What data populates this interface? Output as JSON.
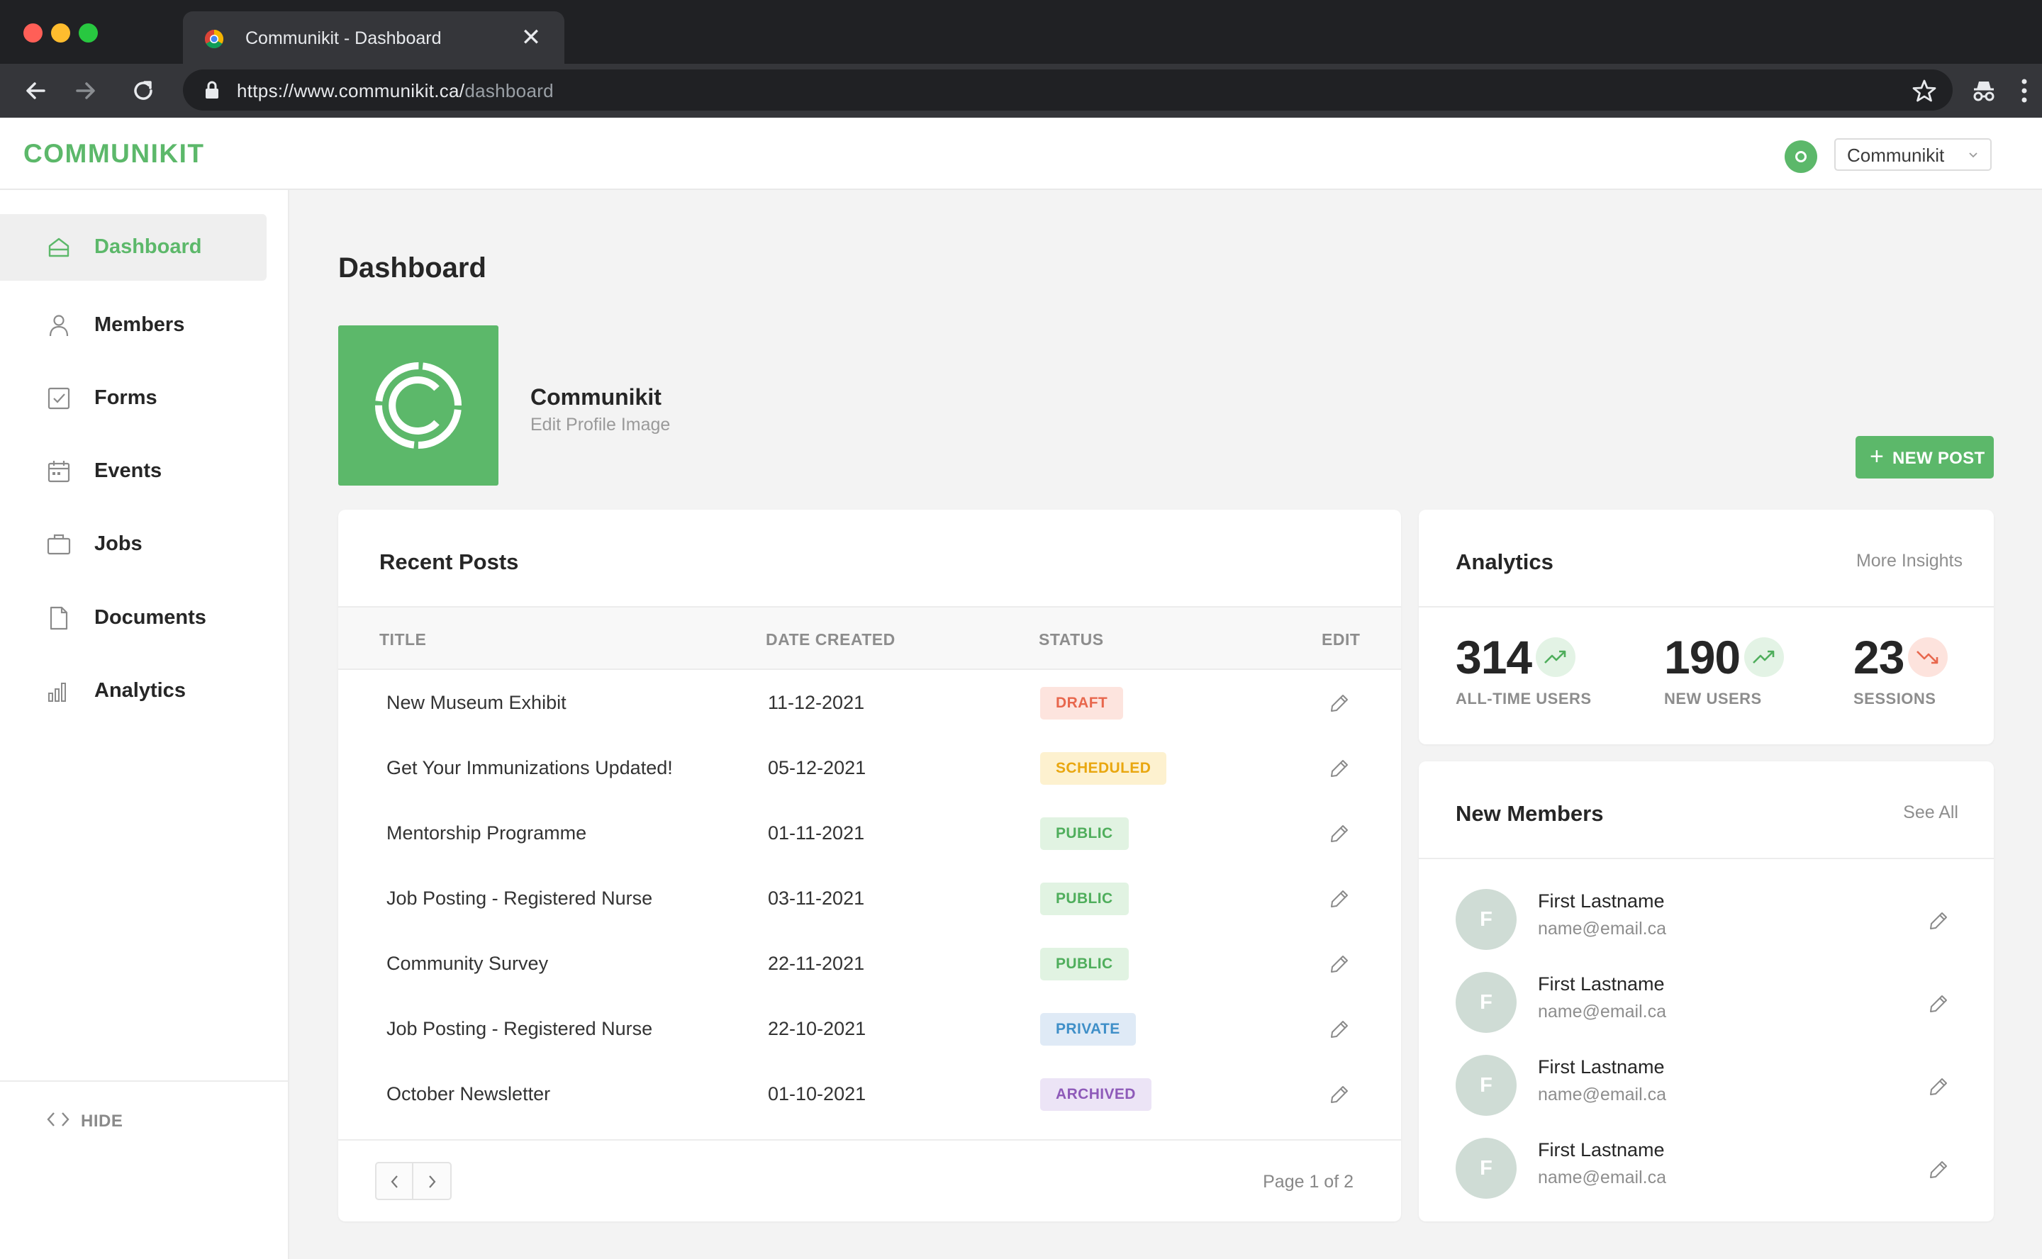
{
  "browser": {
    "tab_title": "Communikit - Dashboard",
    "url_host": "https://www.communikit.ca/",
    "url_path": "dashboard"
  },
  "header": {
    "logo": "COMMUNIKIT",
    "account": "Communikit"
  },
  "sidebar": {
    "items": [
      {
        "label": "Dashboard",
        "icon": "home-icon",
        "active": true
      },
      {
        "label": "Members",
        "icon": "user-icon"
      },
      {
        "label": "Forms",
        "icon": "checkbox-icon"
      },
      {
        "label": "Events",
        "icon": "calendar-icon"
      },
      {
        "label": "Jobs",
        "icon": "briefcase-icon"
      },
      {
        "label": "Documents",
        "icon": "document-icon"
      },
      {
        "label": "Analytics",
        "icon": "bar-chart-icon"
      }
    ],
    "hide_label": "HIDE"
  },
  "page": {
    "title": "Dashboard",
    "profile_name": "Communikit",
    "profile_edit": "Edit Profile Image",
    "new_post_label": "NEW POST"
  },
  "posts": {
    "title": "Recent Posts",
    "columns": [
      "TITLE",
      "DATE CREATED",
      "STATUS",
      "EDIT"
    ],
    "rows": [
      {
        "title": "New Museum Exhibit",
        "date": "11-12-2021",
        "status": "DRAFT"
      },
      {
        "title": "Get Your Immunizations Updated!",
        "date": "05-12-2021",
        "status": "SCHEDULED"
      },
      {
        "title": "Mentorship Programme",
        "date": "01-11-2021",
        "status": "PUBLIC"
      },
      {
        "title": "Job Posting - Registered Nurse",
        "date": "03-11-2021",
        "status": "PUBLIC"
      },
      {
        "title": "Community Survey",
        "date": "22-11-2021",
        "status": "PUBLIC"
      },
      {
        "title": "Job Posting - Registered Nurse",
        "date": "22-10-2021",
        "status": "PRIVATE"
      },
      {
        "title": "October Newsletter",
        "date": "01-10-2021",
        "status": "ARCHIVED"
      }
    ],
    "page_info": "Page 1 of 2"
  },
  "status_colors": {
    "DRAFT": {
      "bg": "#fde4de",
      "fg": "#e8674d"
    },
    "SCHEDULED": {
      "bg": "#fdf1cf",
      "fg": "#e9a70f"
    },
    "PUBLIC": {
      "bg": "#e1f3e2",
      "fg": "#4fae5c"
    },
    "PRIVATE": {
      "bg": "#dfeaf6",
      "fg": "#3f8fc8"
    },
    "ARCHIVED": {
      "bg": "#ece4f6",
      "fg": "#8e5ab9"
    }
  },
  "analytics": {
    "title": "Analytics",
    "link": "More Insights",
    "stats": [
      {
        "value": "314",
        "label": "ALL-TIME USERS",
        "trend": "up"
      },
      {
        "value": "190",
        "label": "NEW USERS",
        "trend": "up"
      },
      {
        "value": "23",
        "label": "SESSIONS",
        "trend": "down"
      }
    ]
  },
  "members": {
    "title": "New Members",
    "link": "See All",
    "items": [
      {
        "initial": "F",
        "name": "First Lastname",
        "email": "name@email.ca"
      },
      {
        "initial": "F",
        "name": "First Lastname",
        "email": "name@email.ca"
      },
      {
        "initial": "F",
        "name": "First Lastname",
        "email": "name@email.ca"
      },
      {
        "initial": "F",
        "name": "First Lastname",
        "email": "name@email.ca"
      }
    ]
  },
  "colors": {
    "brand": "#5cb86a",
    "trend_up_bg": "#e3f3e5",
    "trend_up_fg": "#4fae5c",
    "trend_down_bg": "#fde3dd",
    "trend_down_fg": "#e8674d"
  }
}
